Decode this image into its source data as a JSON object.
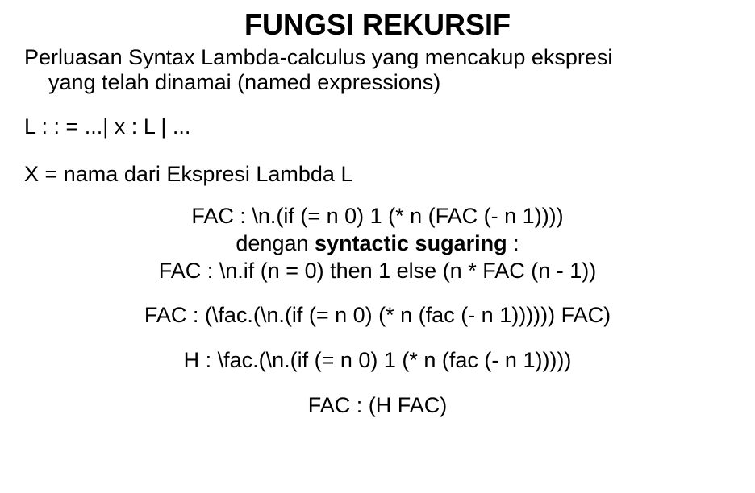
{
  "title": "FUNGSI REKURSIF",
  "intro_line1": "Perluasan Syntax Lambda-calculus yang mencakup ekspresi",
  "intro_line2": "yang telah dinamai (named expressions)",
  "grammar": "L : : = ...| x : L | ...",
  "named": "X =  nama dari Ekspresi Lambda L",
  "fac1_a": "FAC : \\n.(if (= n 0) 1 (* n (FAC (- n 1))))",
  "fac1_b_prefix": "dengan  ",
  "fac1_b_bold": "syntactic sugaring",
  "fac1_b_suffix": " :",
  "fac1_c": "FAC : \\n.if (n = 0) then 1 else (n * FAC (n - 1))",
  "fac2": "FAC : (\\fac.(\\n.(if (= n 0) (* n (fac (- n 1)))))) FAC)",
  "hdef": "H : \\fac.(\\n.(if (= n 0) 1 (* n (fac (- n 1)))))",
  "fac3": "FAC : (H FAC)",
  "style": {
    "background_color": "#ffffff",
    "text_color": "#000000",
    "title_fontsize": 36,
    "body_fontsize": 27,
    "font_family": "Arial"
  }
}
